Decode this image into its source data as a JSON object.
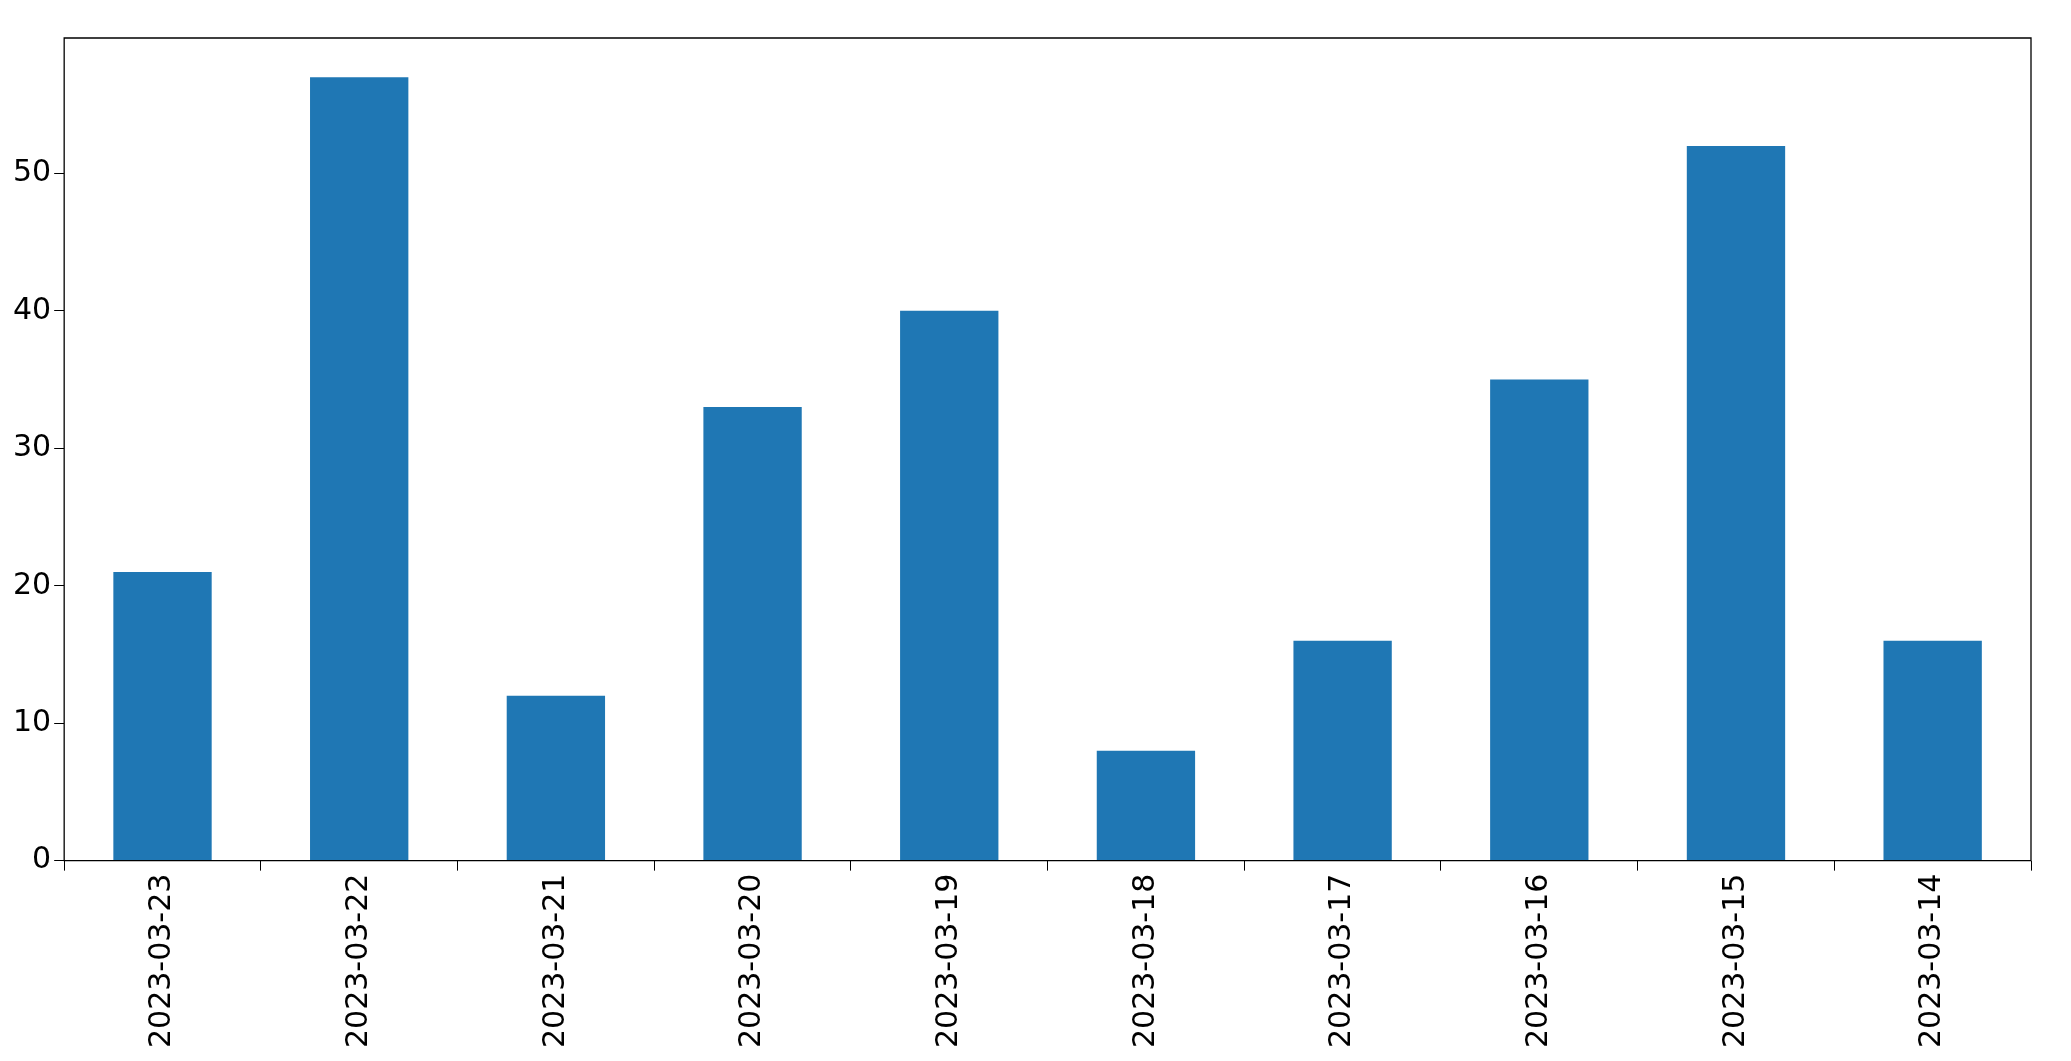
{
  "chart_data": {
    "type": "bar",
    "categories": [
      "2023-03-23",
      "2023-03-22",
      "2023-03-21",
      "2023-03-20",
      "2023-03-19",
      "2023-03-18",
      "2023-03-17",
      "2023-03-16",
      "2023-03-15",
      "2023-03-14"
    ],
    "values": [
      21,
      57,
      12,
      33,
      40,
      8,
      16,
      35,
      52,
      16
    ],
    "color": "#1f77b4",
    "ylim": [
      0,
      59.85
    ],
    "yticks": [
      0,
      10,
      20,
      30,
      40,
      50
    ],
    "grid": false,
    "legend": false
  }
}
